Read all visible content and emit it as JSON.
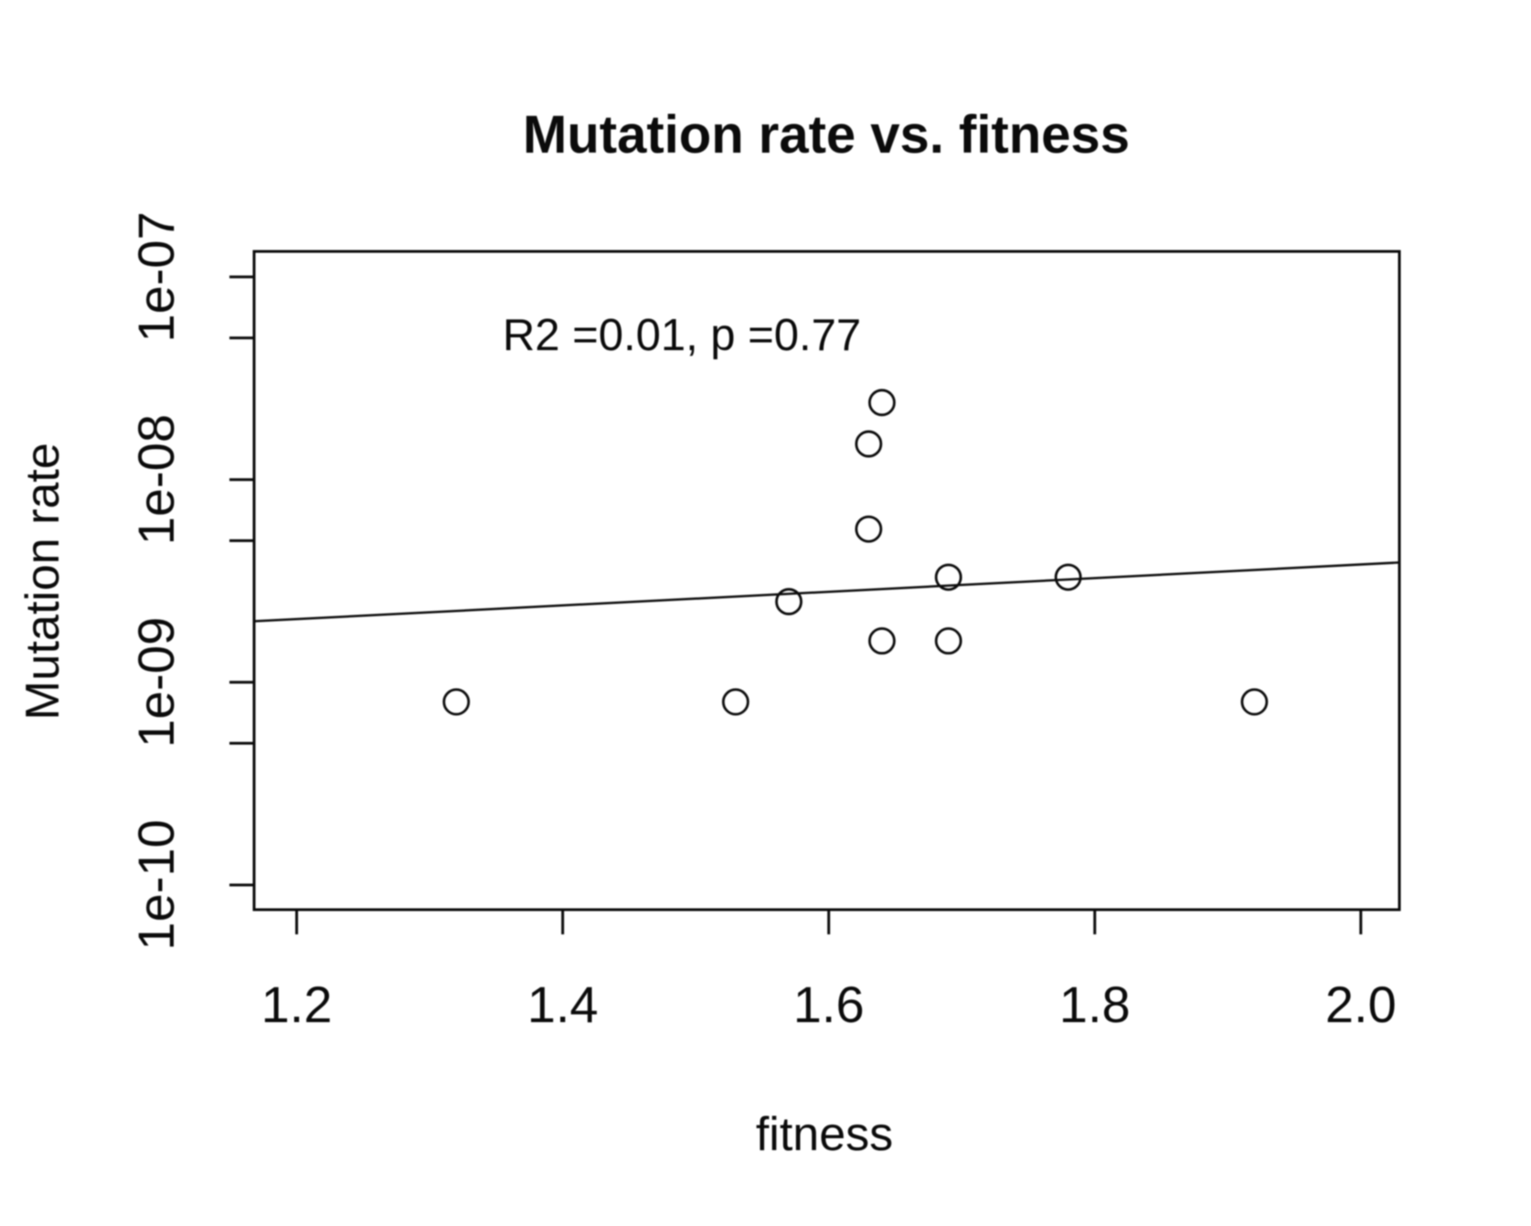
{
  "chart_data": {
    "type": "scatter",
    "title": "Mutation rate vs. fitness",
    "xlabel": "fitness",
    "ylabel": "Mutation rate",
    "annotation": "R2 =0.01, p =0.77",
    "annotation_pos": {
      "x": 1.49,
      "y": 5.2e-08
    },
    "x_ticks": [
      {
        "value": 1.2,
        "label": "1.2"
      },
      {
        "value": 1.4,
        "label": "1.4"
      },
      {
        "value": 1.6,
        "label": "1.6"
      },
      {
        "value": 1.8,
        "label": "1.8"
      },
      {
        "value": 2.0,
        "label": "2.0"
      }
    ],
    "y_ticks": [
      {
        "value": 1e-07,
        "label": "1e-07"
      },
      {
        "value": 1e-08,
        "label": "1e-08"
      },
      {
        "value": 1e-09,
        "label": "1e-09"
      },
      {
        "value": 1e-10,
        "label": "1e-10"
      }
    ],
    "y_minor_ticks": [
      5e-08,
      5e-09,
      5e-10
    ],
    "x_range": [
      1.168,
      2.029
    ],
    "y_log_range": [
      -10.122,
      -6.874
    ],
    "y_scale": "log10",
    "grid": false,
    "legend": "none",
    "points": [
      {
        "x": 1.32,
        "y": 8e-10
      },
      {
        "x": 1.53,
        "y": 8e-10
      },
      {
        "x": 1.92,
        "y": 8e-10
      },
      {
        "x": 1.57,
        "y": 2.5e-09
      },
      {
        "x": 1.64,
        "y": 1.6e-09
      },
      {
        "x": 1.69,
        "y": 1.6e-09
      },
      {
        "x": 1.69,
        "y": 3.3e-09
      },
      {
        "x": 1.78,
        "y": 3.3e-09
      },
      {
        "x": 1.63,
        "y": 5.7e-09
      },
      {
        "x": 1.63,
        "y": 1.5e-08
      },
      {
        "x": 1.64,
        "y": 2.4e-08
      }
    ],
    "regression_line": {
      "x1": 1.168,
      "y1": 2e-09,
      "x2": 2.029,
      "y2": 3.9e-09
    },
    "marker": {
      "shape": "open-circle",
      "radius_px": 13.5
    },
    "colors": {
      "foreground": "#0b0b0b",
      "background": "#ffffff"
    }
  }
}
